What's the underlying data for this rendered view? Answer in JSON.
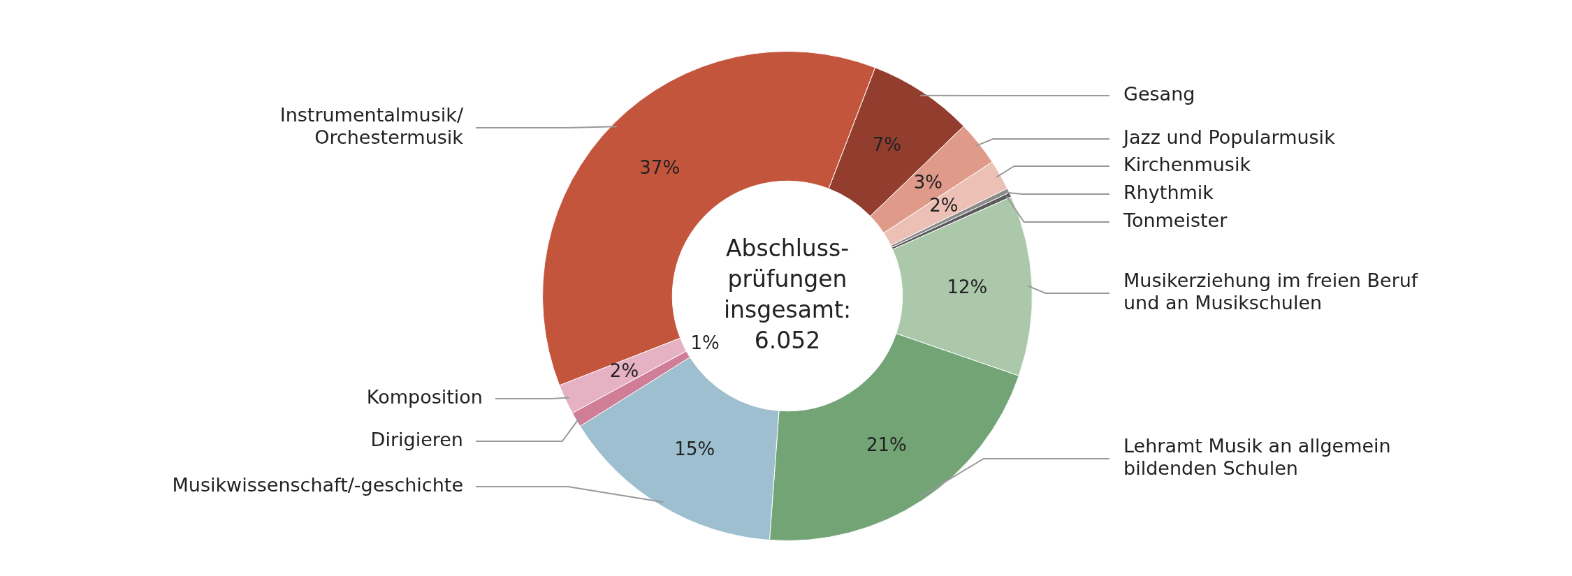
{
  "chart_data": {
    "type": "donut",
    "categories": [
      "Gesang",
      "Jazz und Popularmusik",
      "Kirchenmusik",
      "Rhythmik",
      "Tonmeister",
      "Musikerziehung im freien Beruf\nund an Musikschulen",
      "Lehramt Musik an allgemein\nbildenden Schulen",
      "Musikwissenschaft/-geschichte",
      "Dirigieren",
      "Komposition",
      "Instrumentalmusik/\nOrchestermusik"
    ],
    "values": [
      7,
      3,
      2,
      0.3,
      0.3,
      12,
      21,
      15,
      1,
      2,
      37
    ],
    "colors": [
      "#933d2e",
      "#e09a8a",
      "#ecc0b5",
      "#8a8a8a",
      "#5a5a5a",
      "#abc9aa",
      "#72a475",
      "#9dbfcf",
      "#d07d98",
      "#e5b1c3",
      "#c4553d"
    ],
    "value_labels": [
      "7%",
      "3%",
      "2%",
      null,
      null,
      "12%",
      "21%",
      "15%",
      "1%",
      "2%",
      "37%"
    ],
    "annotations": [
      "Abschluss-\nprüfungen\ninsgesamt:\n6.052"
    ],
    "legend": false
  }
}
